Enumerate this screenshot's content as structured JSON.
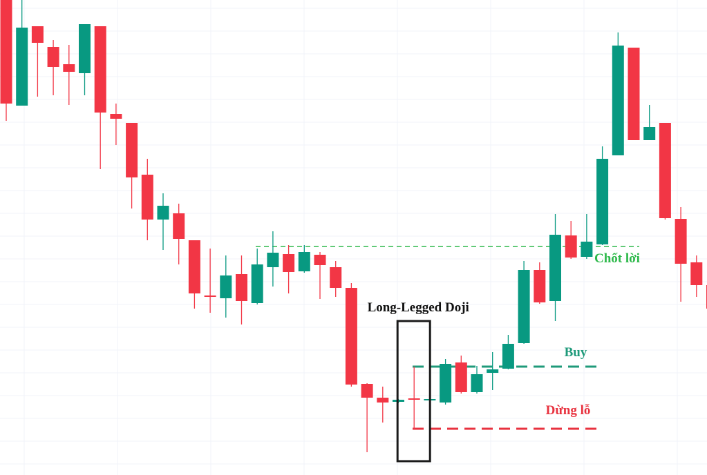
{
  "chart_data": {
    "type": "candlestick",
    "ylim": [
      0,
      688
    ],
    "up_color": "#089981",
    "down_color": "#f23645",
    "grid": true,
    "open": [
      688,
      535,
      650,
      620,
      595,
      582,
      650,
      523,
      510,
      435,
      370,
      379,
      340,
      260,
      256,
      291,
      249,
      301,
      320,
      295,
      319,
      301,
      271,
      132,
      112,
      106,
      111,
      108,
      105,
      163,
      120,
      148,
      154,
      191,
      297,
      252,
      347,
      316,
      334,
      463,
      619,
      485,
      510,
      371,
      308,
      275
    ],
    "high": [
      688,
      688,
      650,
      630,
      623,
      653,
      650,
      538,
      510,
      458,
      408,
      393,
      340,
      328,
      318,
      318,
      328,
      353,
      333,
      333,
      323,
      310,
      278,
      133,
      128,
      110,
      157,
      110,
      168,
      173,
      158,
      178,
      203,
      310,
      308,
      378,
      368,
      378,
      476,
      641,
      619,
      536,
      510,
      388,
      318,
      275
    ],
    "low": [
      513,
      535,
      548,
      550,
      536,
      550,
      443,
      478,
      386,
      340,
      326,
      305,
      241,
      235,
      228,
      218,
      247,
      273,
      263,
      293,
      255,
      258,
      128,
      33,
      76,
      104,
      67,
      108,
      102,
      118,
      118,
      123,
      153,
      190,
      248,
      223,
      313,
      313,
      333,
      463,
      485,
      485,
      370,
      251,
      258,
      241
    ],
    "close": [
      538,
      648,
      626,
      591,
      584,
      653,
      525,
      516,
      431,
      370,
      390,
      342,
      263,
      258,
      289,
      252,
      305,
      322,
      294,
      323,
      304,
      271,
      131,
      112,
      105,
      109,
      109,
      110,
      161,
      120,
      146,
      153,
      190,
      297,
      250,
      348,
      315,
      338,
      458,
      622,
      485,
      504,
      372,
      306,
      275,
      241
    ],
    "levels": [
      {
        "name": "Chốt lời",
        "value": 331,
        "color": "#2db84a"
      },
      {
        "name": "Buy",
        "value": 157,
        "color": "#1f9a7a"
      },
      {
        "name": "Dừng lỗ",
        "value": 67,
        "color": "#e8323f"
      }
    ],
    "annotations": [
      {
        "text": "Long-Legged Doji",
        "index": 26
      }
    ]
  }
}
